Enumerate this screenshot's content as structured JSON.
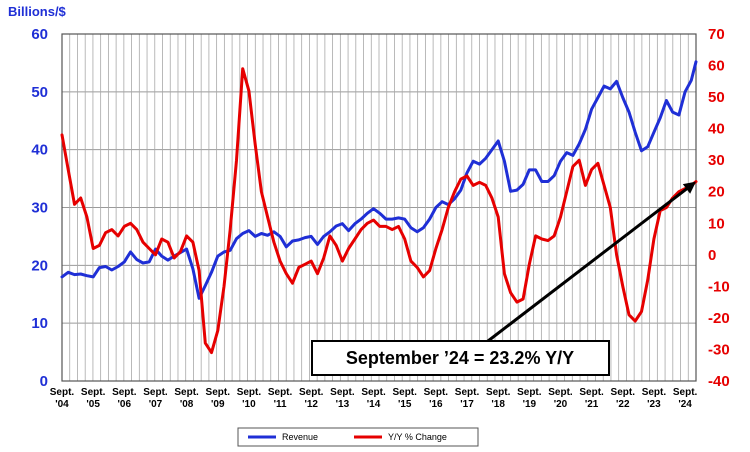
{
  "chart_data": {
    "type": "line",
    "unit_label": "Billions/$",
    "left_axis": {
      "ylim": [
        0,
        60
      ],
      "ticks": [
        "0",
        "10",
        "20",
        "30",
        "40",
        "50",
        "60"
      ],
      "color": "#1f2fd6"
    },
    "right_axis": {
      "ylim": [
        -40,
        70
      ],
      "ticks": [
        "-40",
        "-30",
        "-20",
        "-10",
        "0",
        "10",
        "20",
        "30",
        "40",
        "50",
        "60",
        "70"
      ],
      "color": "#e60000"
    },
    "x_ticks": [
      {
        "year": 2004,
        "line1": "Sept.",
        "line2": "'04"
      },
      {
        "year": 2005,
        "line1": "Sept.",
        "line2": "'05"
      },
      {
        "year": 2006,
        "line1": "Sept.",
        "line2": "'06"
      },
      {
        "year": 2007,
        "line1": "Sept.",
        "line2": "'07"
      },
      {
        "year": 2008,
        "line1": "Sept.",
        "line2": "'08"
      },
      {
        "year": 2009,
        "line1": "Sept.",
        "line2": "'09"
      },
      {
        "year": 2010,
        "line1": "Sept.",
        "line2": "'10"
      },
      {
        "year": 2011,
        "line1": "Sept.",
        "line2": "'11"
      },
      {
        "year": 2012,
        "line1": "Sept.",
        "line2": "'12"
      },
      {
        "year": 2013,
        "line1": "Sept.",
        "line2": "'13"
      },
      {
        "year": 2014,
        "line1": "Sept.",
        "line2": "'14"
      },
      {
        "year": 2015,
        "line1": "Sept.",
        "line2": "'15"
      },
      {
        "year": 2016,
        "line1": "Sept.",
        "line2": "'16"
      },
      {
        "year": 2017,
        "line1": "Sept.",
        "line2": "'17"
      },
      {
        "year": 2018,
        "line1": "Sept.",
        "line2": "'18"
      },
      {
        "year": 2019,
        "line1": "Sept.",
        "line2": "'19"
      },
      {
        "year": 2020,
        "line1": "Sept.",
        "line2": "'20"
      },
      {
        "year": 2021,
        "line1": "Sept.",
        "line2": "'21"
      },
      {
        "year": 2022,
        "line1": "Sept.",
        "line2": "'22"
      },
      {
        "year": 2023,
        "line1": "Sept.",
        "line2": "'23"
      },
      {
        "year": 2024,
        "line1": "Sept.",
        "line2": "'24"
      }
    ],
    "grid": true,
    "legend": {
      "placement": "bottom-center"
    },
    "annotation": {
      "text": "September ’24 = 23.2% Y/Y"
    },
    "series": [
      {
        "name": "Revenue",
        "axis": "left",
        "color": "#1f2fd6",
        "points": [
          [
            2004.0,
            18.0
          ],
          [
            2004.2,
            18.8
          ],
          [
            2004.4,
            18.4
          ],
          [
            2004.6,
            18.5
          ],
          [
            2004.8,
            18.2
          ],
          [
            2005.0,
            18.0
          ],
          [
            2005.2,
            19.6
          ],
          [
            2005.4,
            19.8
          ],
          [
            2005.6,
            19.2
          ],
          [
            2005.8,
            19.8
          ],
          [
            2006.0,
            20.6
          ],
          [
            2006.2,
            22.3
          ],
          [
            2006.4,
            21.0
          ],
          [
            2006.6,
            20.4
          ],
          [
            2006.8,
            20.6
          ],
          [
            2007.0,
            22.8
          ],
          [
            2007.2,
            21.6
          ],
          [
            2007.4,
            20.9
          ],
          [
            2007.6,
            21.6
          ],
          [
            2007.8,
            22.2
          ],
          [
            2008.0,
            22.8
          ],
          [
            2008.2,
            19.4
          ],
          [
            2008.4,
            14.3
          ],
          [
            2008.6,
            16.5
          ],
          [
            2008.8,
            18.8
          ],
          [
            2009.0,
            21.6
          ],
          [
            2009.2,
            22.3
          ],
          [
            2009.4,
            22.6
          ],
          [
            2009.6,
            24.6
          ],
          [
            2009.8,
            25.5
          ],
          [
            2010.0,
            26.0
          ],
          [
            2010.2,
            25.0
          ],
          [
            2010.4,
            25.5
          ],
          [
            2010.6,
            25.2
          ],
          [
            2010.8,
            25.8
          ],
          [
            2011.0,
            25.0
          ],
          [
            2011.2,
            23.2
          ],
          [
            2011.4,
            24.2
          ],
          [
            2011.6,
            24.4
          ],
          [
            2011.8,
            24.8
          ],
          [
            2012.0,
            25.0
          ],
          [
            2012.2,
            23.6
          ],
          [
            2012.4,
            25.0
          ],
          [
            2012.6,
            25.8
          ],
          [
            2012.8,
            26.8
          ],
          [
            2013.0,
            27.2
          ],
          [
            2013.2,
            26.0
          ],
          [
            2013.4,
            27.2
          ],
          [
            2013.6,
            28.0
          ],
          [
            2013.8,
            29.0
          ],
          [
            2014.0,
            29.8
          ],
          [
            2014.2,
            29.0
          ],
          [
            2014.4,
            28.0
          ],
          [
            2014.6,
            28.0
          ],
          [
            2014.8,
            28.2
          ],
          [
            2015.0,
            28.0
          ],
          [
            2015.2,
            26.5
          ],
          [
            2015.4,
            25.8
          ],
          [
            2015.6,
            26.5
          ],
          [
            2015.8,
            28.0
          ],
          [
            2016.0,
            30.0
          ],
          [
            2016.2,
            31.0
          ],
          [
            2016.4,
            30.5
          ],
          [
            2016.6,
            31.5
          ],
          [
            2016.8,
            33.0
          ],
          [
            2017.0,
            36.0
          ],
          [
            2017.2,
            38.0
          ],
          [
            2017.4,
            37.5
          ],
          [
            2017.6,
            38.5
          ],
          [
            2017.8,
            40.0
          ],
          [
            2018.0,
            41.5
          ],
          [
            2018.2,
            38.0
          ],
          [
            2018.4,
            32.8
          ],
          [
            2018.6,
            33.0
          ],
          [
            2018.8,
            34.0
          ],
          [
            2019.0,
            36.5
          ],
          [
            2019.2,
            36.5
          ],
          [
            2019.4,
            34.5
          ],
          [
            2019.6,
            34.5
          ],
          [
            2019.8,
            35.5
          ],
          [
            2020.0,
            38.0
          ],
          [
            2020.2,
            39.5
          ],
          [
            2020.4,
            39.0
          ],
          [
            2020.6,
            41.0
          ],
          [
            2020.8,
            43.5
          ],
          [
            2021.0,
            47.0
          ],
          [
            2021.2,
            49.0
          ],
          [
            2021.4,
            51.0
          ],
          [
            2021.6,
            50.5
          ],
          [
            2021.8,
            51.8
          ],
          [
            2022.0,
            49.0
          ],
          [
            2022.2,
            46.5
          ],
          [
            2022.4,
            43.0
          ],
          [
            2022.6,
            39.8
          ],
          [
            2022.8,
            40.5
          ],
          [
            2023.0,
            43.0
          ],
          [
            2023.2,
            45.5
          ],
          [
            2023.4,
            48.5
          ],
          [
            2023.6,
            46.5
          ],
          [
            2023.8,
            46.0
          ],
          [
            2024.0,
            50.0
          ],
          [
            2024.2,
            52.0
          ],
          [
            2024.35,
            55.2
          ]
        ]
      },
      {
        "name": "Y/Y % Change",
        "axis": "right",
        "color": "#e60000",
        "points": [
          [
            2004.0,
            38.0
          ],
          [
            2004.2,
            27.0
          ],
          [
            2004.4,
            16.0
          ],
          [
            2004.6,
            18.0
          ],
          [
            2004.8,
            12.0
          ],
          [
            2005.0,
            2.0
          ],
          [
            2005.2,
            3.0
          ],
          [
            2005.4,
            7.0
          ],
          [
            2005.6,
            8.0
          ],
          [
            2005.8,
            6.0
          ],
          [
            2006.0,
            9.0
          ],
          [
            2006.2,
            10.0
          ],
          [
            2006.4,
            8.0
          ],
          [
            2006.6,
            4.0
          ],
          [
            2006.8,
            2.0
          ],
          [
            2007.0,
            0.0
          ],
          [
            2007.2,
            5.0
          ],
          [
            2007.4,
            4.0
          ],
          [
            2007.6,
            -1.0
          ],
          [
            2007.8,
            1.0
          ],
          [
            2008.0,
            6.0
          ],
          [
            2008.2,
            4.0
          ],
          [
            2008.4,
            -5.0
          ],
          [
            2008.6,
            -28.0
          ],
          [
            2008.8,
            -31.0
          ],
          [
            2009.0,
            -24.0
          ],
          [
            2009.2,
            -10.0
          ],
          [
            2009.4,
            8.0
          ],
          [
            2009.6,
            30.0
          ],
          [
            2009.8,
            59.0
          ],
          [
            2010.0,
            52.0
          ],
          [
            2010.2,
            35.0
          ],
          [
            2010.4,
            20.0
          ],
          [
            2010.6,
            12.0
          ],
          [
            2010.8,
            4.0
          ],
          [
            2011.0,
            -2.0
          ],
          [
            2011.2,
            -6.0
          ],
          [
            2011.4,
            -9.0
          ],
          [
            2011.6,
            -4.0
          ],
          [
            2011.8,
            -3.0
          ],
          [
            2012.0,
            -2.0
          ],
          [
            2012.2,
            -6.0
          ],
          [
            2012.4,
            -1.0
          ],
          [
            2012.6,
            6.0
          ],
          [
            2012.8,
            3.0
          ],
          [
            2013.0,
            -2.0
          ],
          [
            2013.2,
            2.0
          ],
          [
            2013.4,
            5.0
          ],
          [
            2013.6,
            8.0
          ],
          [
            2013.8,
            10.0
          ],
          [
            2014.0,
            11.0
          ],
          [
            2014.2,
            9.0
          ],
          [
            2014.4,
            9.0
          ],
          [
            2014.6,
            8.0
          ],
          [
            2014.8,
            9.0
          ],
          [
            2015.0,
            5.0
          ],
          [
            2015.2,
            -2.0
          ],
          [
            2015.4,
            -4.0
          ],
          [
            2015.6,
            -7.0
          ],
          [
            2015.8,
            -5.0
          ],
          [
            2016.0,
            2.0
          ],
          [
            2016.2,
            8.0
          ],
          [
            2016.4,
            15.0
          ],
          [
            2016.6,
            20.0
          ],
          [
            2016.8,
            24.0
          ],
          [
            2017.0,
            25.0
          ],
          [
            2017.2,
            22.0
          ],
          [
            2017.4,
            23.0
          ],
          [
            2017.6,
            22.0
          ],
          [
            2017.8,
            18.0
          ],
          [
            2018.0,
            12.0
          ],
          [
            2018.2,
            -6.0
          ],
          [
            2018.4,
            -12.0
          ],
          [
            2018.6,
            -15.0
          ],
          [
            2018.8,
            -14.0
          ],
          [
            2019.0,
            -3.0
          ],
          [
            2019.2,
            6.0
          ],
          [
            2019.4,
            5.0
          ],
          [
            2019.6,
            4.5
          ],
          [
            2019.8,
            6.0
          ],
          [
            2020.0,
            12.0
          ],
          [
            2020.2,
            20.0
          ],
          [
            2020.4,
            28.0
          ],
          [
            2020.6,
            30.0
          ],
          [
            2020.8,
            22.0
          ],
          [
            2021.0,
            27.0
          ],
          [
            2021.2,
            29.0
          ],
          [
            2021.4,
            22.0
          ],
          [
            2021.6,
            15.0
          ],
          [
            2021.8,
            0.0
          ],
          [
            2022.0,
            -10.0
          ],
          [
            2022.2,
            -19.0
          ],
          [
            2022.4,
            -21.0
          ],
          [
            2022.6,
            -18.0
          ],
          [
            2022.8,
            -8.0
          ],
          [
            2023.0,
            5.0
          ],
          [
            2023.2,
            14.0
          ],
          [
            2023.4,
            15.0
          ],
          [
            2023.6,
            18.0
          ],
          [
            2023.8,
            20.0
          ],
          [
            2024.0,
            21.0
          ],
          [
            2024.2,
            22.0
          ],
          [
            2024.35,
            23.2
          ]
        ]
      }
    ]
  }
}
